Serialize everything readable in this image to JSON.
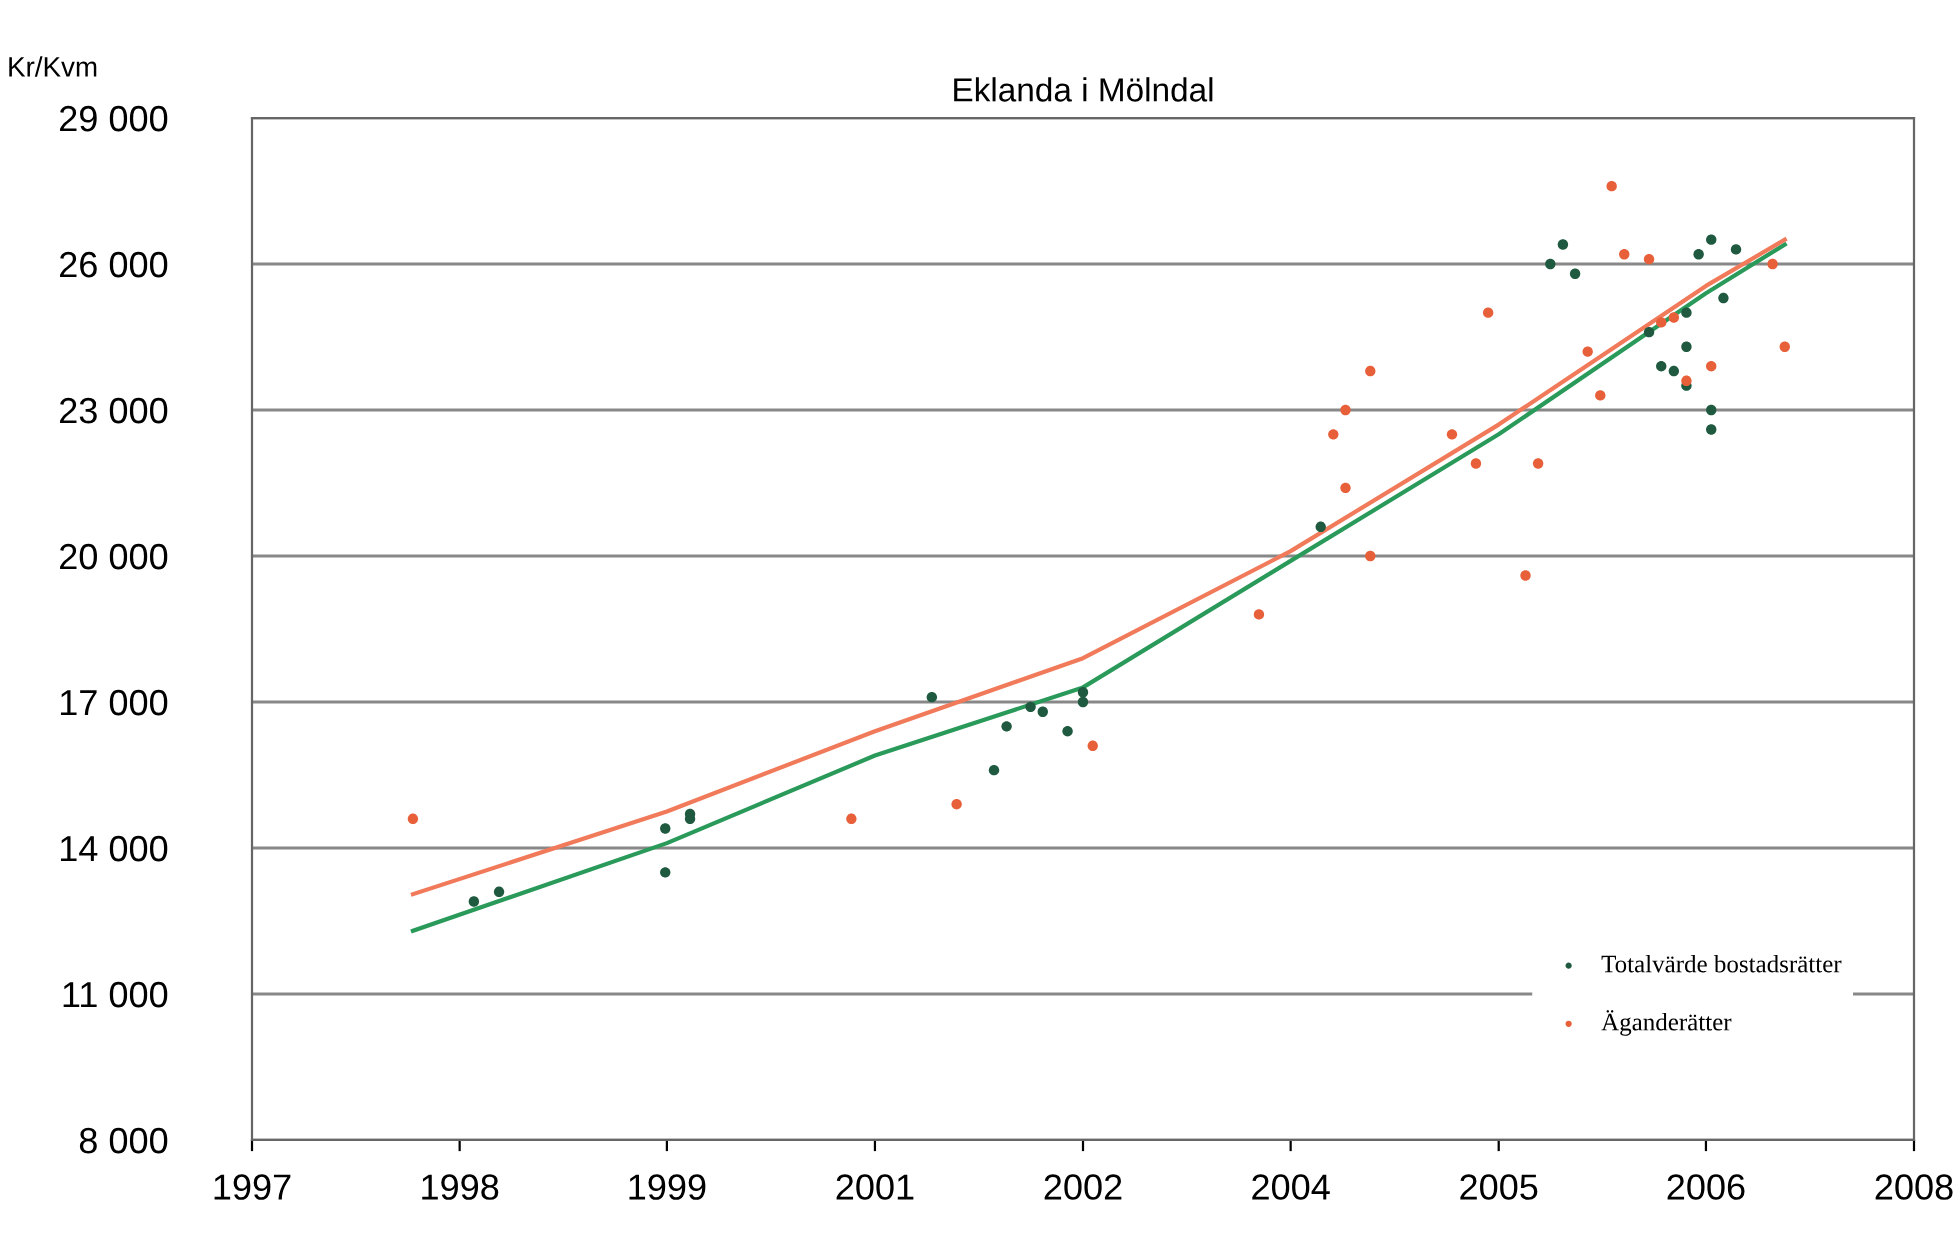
{
  "chart_data": {
    "type": "scatter",
    "title": "Eklanda i Mölndal",
    "ylabel": "Kr/Kvm",
    "xlim": [
      "1997-01-01",
      "2008-03-14"
    ],
    "xticks": [
      {
        "value": "1997-01-01",
        "label": "1997"
      },
      {
        "value": "1998-05-27",
        "label": "1998"
      },
      {
        "value": "1999-10-19",
        "label": "1999"
      },
      {
        "value": "2001-03-14",
        "label": "2001"
      },
      {
        "value": "2002-08-08",
        "label": "2002"
      },
      {
        "value": "2004-01-01",
        "label": "2004"
      },
      {
        "value": "2005-05-27",
        "label": "2005"
      },
      {
        "value": "2006-10-19",
        "label": "2006"
      },
      {
        "value": "2008-03-14",
        "label": "2008"
      }
    ],
    "ylim": [
      8000,
      29000
    ],
    "yticks": [
      {
        "value": 8000,
        "label": "8 000"
      },
      {
        "value": 11000,
        "label": "11 000"
      },
      {
        "value": 14000,
        "label": "14 000"
      },
      {
        "value": 17000,
        "label": "17 000"
      },
      {
        "value": 20000,
        "label": "20 000"
      },
      {
        "value": 23000,
        "label": "23 000"
      },
      {
        "value": 26000,
        "label": "26 000"
      },
      {
        "value": 29000,
        "label": "29 000"
      }
    ],
    "grid": "y",
    "legend": "lower right",
    "marker": "circle",
    "series": [
      {
        "name": "Totalvärde bostadsrätter",
        "color": "#1f5a40",
        "x": [
          "1998-07-01",
          "1998-09-01",
          "1999-10-15",
          "1999-10-15",
          "1999-12-15",
          "1999-12-15",
          "2001-08-01",
          "2002-01-01",
          "2002-02-01",
          "2002-04-01",
          "2002-05-01",
          "2002-07-01",
          "2002-08-08",
          "2002-08-08",
          "2004-03-15",
          "2005-10-01",
          "2005-11-01",
          "2005-12-01",
          "2006-06-01",
          "2006-07-01",
          "2006-08-01",
          "2006-09-01",
          "2006-09-01",
          "2006-09-01",
          "2006-10-01",
          "2006-11-01",
          "2006-11-01",
          "2006-11-01",
          "2006-12-01",
          "2007-01-01"
        ],
        "values": [
          12900,
          13100,
          14400,
          13500,
          14700,
          14600,
          17100,
          15600,
          16500,
          16900,
          16800,
          16400,
          17200,
          17000,
          20600,
          26000,
          26400,
          25800,
          24600,
          23900,
          23800,
          25000,
          24300,
          23500,
          26200,
          26500,
          23000,
          22600,
          25300,
          26300
        ]
      },
      {
        "name": "Äganderätter",
        "color": "#e8603a",
        "x": [
          "1998-02-01",
          "2001-01-15",
          "2001-10-01",
          "2002-09-01",
          "2003-10-15",
          "2004-04-15",
          "2004-05-15",
          "2004-05-15",
          "2004-07-15",
          "2004-07-15",
          "2005-02-01",
          "2005-04-01",
          "2005-05-01",
          "2005-08-01",
          "2005-09-01",
          "2006-01-01",
          "2006-02-01",
          "2006-03-01",
          "2006-04-01",
          "2006-06-01",
          "2006-07-01",
          "2006-08-01",
          "2006-09-01",
          "2006-11-01",
          "2007-04-01",
          "2007-05-01"
        ],
        "values": [
          14600,
          14600,
          14900,
          16100,
          18800,
          22500,
          23000,
          21400,
          23800,
          20000,
          22500,
          21900,
          25000,
          19600,
          21900,
          24200,
          23300,
          27600,
          26200,
          26100,
          24800,
          24900,
          23600,
          23900,
          26000,
          24300
        ]
      },
      {
        "type": "line",
        "color": "#2a9a5a",
        "marker": "none",
        "x": [
          "1998-02-01",
          "1999-10-19",
          "2001-03-14",
          "2002-08-08",
          "2004-01-01",
          "2005-05-27",
          "2006-10-19",
          "2007-05-01"
        ],
        "values": [
          12300,
          14100,
          15900,
          17300,
          19900,
          22500,
          25400,
          26400
        ]
      },
      {
        "type": "line",
        "color": "#f07a5a",
        "marker": "none",
        "x": [
          "1998-02-01",
          "1999-10-19",
          "2001-03-14",
          "2002-08-08",
          "2004-01-01",
          "2005-05-27",
          "2006-10-19",
          "2007-05-01"
        ],
        "values": [
          13050,
          14750,
          16400,
          17900,
          20100,
          22700,
          25550,
          26500
        ]
      }
    ]
  }
}
